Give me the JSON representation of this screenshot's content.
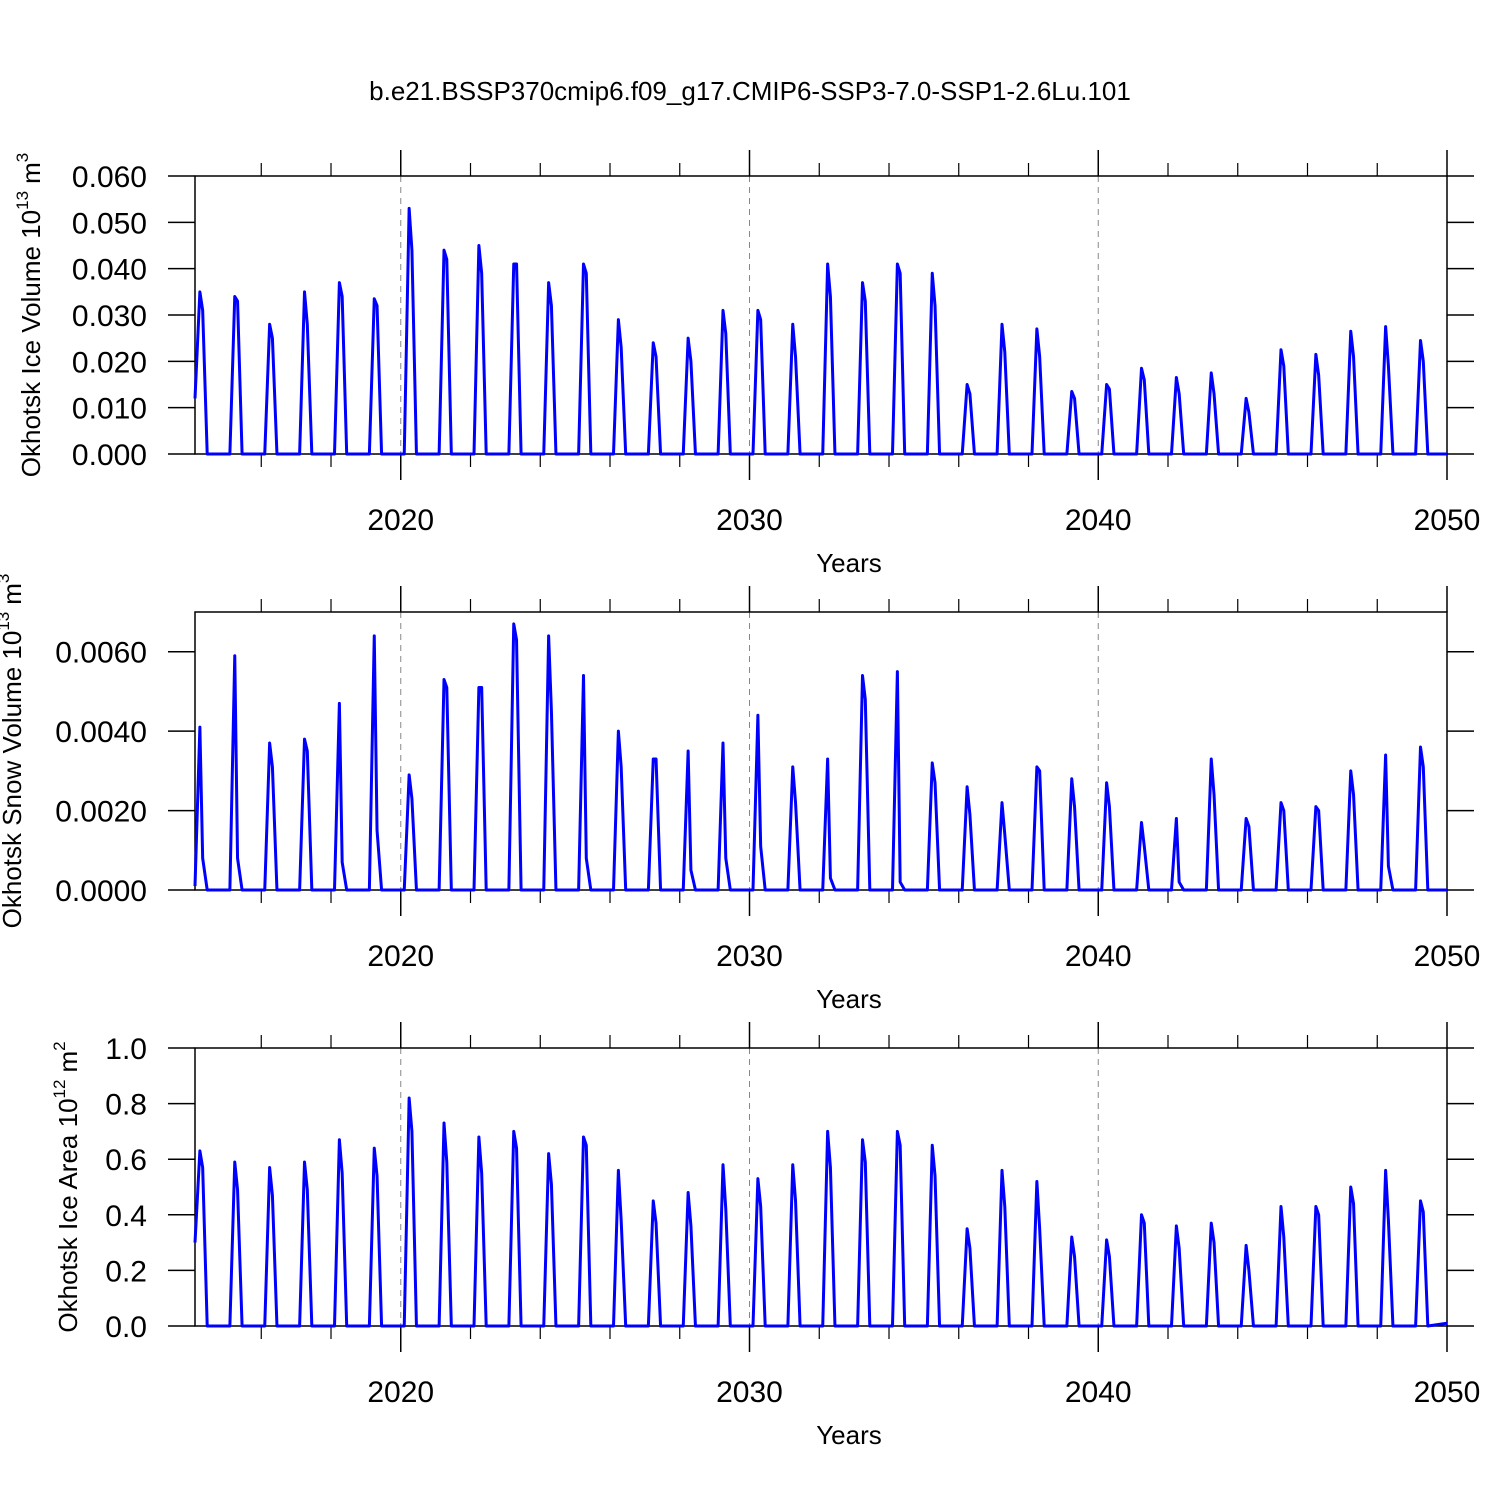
{
  "chart_data": [
    {
      "type": "line",
      "title": "b.e21.BSSP370cmip6.f09_g17.CMIP6-SSP3-7.0-SSP1-2.6Lu.101",
      "ylabel": [
        "Okhotsk Ice Volume 10",
        "13",
        "m",
        "3"
      ],
      "xlabel": "Years",
      "color": "#0000ff",
      "grid": "x",
      "xlim": [
        2014.1,
        2050
      ],
      "xticks": [
        2020,
        2030,
        2040,
        2050
      ],
      "xminor_ticks": [
        2016,
        2018,
        2022,
        2024,
        2026,
        2028,
        2032,
        2034,
        2036,
        2038,
        2042,
        2044,
        2046,
        2048
      ],
      "ylim": [
        0,
        0.06
      ],
      "yticks": [
        {
          "value": 0,
          "label": "0.000"
        },
        {
          "value": 0.01,
          "label": "0.010"
        },
        {
          "value": 0.02,
          "label": "0.020"
        },
        {
          "value": 0.03,
          "label": "0.030"
        },
        {
          "value": 0.04,
          "label": "0.040"
        },
        {
          "value": 0.05,
          "label": "0.050"
        },
        {
          "value": 0.06,
          "label": "0.060"
        }
      ],
      "x": [
        2014.1,
        2014.24,
        2014.32,
        2014.45,
        2015.1,
        2015.24,
        2015.32,
        2015.45,
        2016.1,
        2016.24,
        2016.32,
        2016.45,
        2017.1,
        2017.24,
        2017.32,
        2017.45,
        2018.1,
        2018.24,
        2018.32,
        2018.45,
        2019.1,
        2019.24,
        2019.32,
        2019.45,
        2020.1,
        2020.24,
        2020.32,
        2020.45,
        2021.1,
        2021.24,
        2021.32,
        2021.45,
        2022.1,
        2022.24,
        2022.32,
        2022.45,
        2023.1,
        2023.24,
        2023.32,
        2023.45,
        2024.1,
        2024.24,
        2024.32,
        2024.45,
        2025.1,
        2025.24,
        2025.32,
        2025.45,
        2026.1,
        2026.24,
        2026.32,
        2026.45,
        2027.1,
        2027.24,
        2027.32,
        2027.45,
        2028.1,
        2028.24,
        2028.32,
        2028.45,
        2029.1,
        2029.24,
        2029.32,
        2029.45,
        2030.1,
        2030.24,
        2030.32,
        2030.45,
        2031.1,
        2031.24,
        2031.32,
        2031.45,
        2032.1,
        2032.24,
        2032.32,
        2032.45,
        2033.1,
        2033.24,
        2033.32,
        2033.45,
        2034.1,
        2034.24,
        2034.32,
        2034.45,
        2035.1,
        2035.24,
        2035.32,
        2035.45,
        2036.1,
        2036.24,
        2036.32,
        2036.45,
        2037.1,
        2037.24,
        2037.32,
        2037.45,
        2038.1,
        2038.24,
        2038.32,
        2038.45,
        2039.1,
        2039.24,
        2039.32,
        2039.45,
        2040.1,
        2040.24,
        2040.32,
        2040.45,
        2041.1,
        2041.24,
        2041.32,
        2041.45,
        2042.1,
        2042.24,
        2042.32,
        2042.45,
        2043.1,
        2043.24,
        2043.32,
        2043.45,
        2044.1,
        2044.24,
        2044.32,
        2044.45,
        2045.1,
        2045.24,
        2045.32,
        2045.45,
        2046.1,
        2046.24,
        2046.32,
        2046.45,
        2047.1,
        2047.24,
        2047.32,
        2047.45,
        2048.1,
        2048.24,
        2048.32,
        2048.45,
        2049.1,
        2049.24,
        2049.32,
        2049.45,
        2050
      ],
      "values": [
        0.012,
        0.035,
        0.031,
        0,
        0,
        0.034,
        0.033,
        0,
        0,
        0.028,
        0.025,
        0,
        0,
        0.035,
        0.028,
        0,
        0,
        0.037,
        0.034,
        0,
        0,
        0.0335,
        0.032,
        0,
        0,
        0.053,
        0.044,
        0,
        0,
        0.044,
        0.042,
        0,
        0,
        0.045,
        0.039,
        0,
        0,
        0.041,
        0.041,
        0,
        0,
        0.037,
        0.032,
        0,
        0,
        0.041,
        0.039,
        0,
        0,
        0.029,
        0.023,
        0,
        0,
        0.024,
        0.021,
        0,
        0,
        0.025,
        0.02,
        0,
        0,
        0.031,
        0.026,
        0,
        0,
        0.031,
        0.029,
        0,
        0,
        0.028,
        0.021,
        0,
        0,
        0.041,
        0.034,
        0,
        0,
        0.037,
        0.033,
        0,
        0,
        0.041,
        0.039,
        0,
        0,
        0.039,
        0.032,
        0,
        0,
        0.015,
        0.013,
        0,
        0,
        0.028,
        0.022,
        0,
        0,
        0.027,
        0.021,
        0,
        0,
        0.0135,
        0.012,
        0,
        0,
        0.015,
        0.014,
        0,
        0,
        0.0185,
        0.016,
        0,
        0,
        0.0165,
        0.013,
        0,
        0,
        0.0175,
        0.013,
        0,
        0,
        0.012,
        0.009,
        0,
        0,
        0.0225,
        0.019,
        0,
        0,
        0.0215,
        0.017,
        0,
        0,
        0.0265,
        0.021,
        0,
        0,
        0.0275,
        0.019,
        0,
        0,
        0.0245,
        0.02,
        0,
        0
      ]
    },
    {
      "type": "line",
      "ylabel": [
        "Okhotsk Snow Volume 10",
        "13",
        "m",
        "3"
      ],
      "xlabel": "Years",
      "color": "#0000ff",
      "grid": "x",
      "xlim": [
        2014.1,
        2050
      ],
      "xticks": [
        2020,
        2030,
        2040,
        2050
      ],
      "xminor_ticks": [
        2016,
        2018,
        2022,
        2024,
        2026,
        2028,
        2032,
        2034,
        2036,
        2038,
        2042,
        2044,
        2046,
        2048
      ],
      "ylim": [
        0,
        0.007
      ],
      "yticks": [
        {
          "value": 0,
          "label": "0.0000"
        },
        {
          "value": 0.002,
          "label": "0.0020"
        },
        {
          "value": 0.004,
          "label": "0.0040"
        },
        {
          "value": 0.006,
          "label": "0.0060"
        }
      ],
      "x": [
        2014.1,
        2014.24,
        2014.32,
        2014.45,
        2015.1,
        2015.24,
        2015.32,
        2015.45,
        2016.1,
        2016.24,
        2016.32,
        2016.45,
        2017.1,
        2017.24,
        2017.32,
        2017.45,
        2018.1,
        2018.24,
        2018.32,
        2018.45,
        2019.1,
        2019.24,
        2019.32,
        2019.45,
        2020.1,
        2020.24,
        2020.32,
        2020.45,
        2021.1,
        2021.24,
        2021.32,
        2021.45,
        2022.1,
        2022.24,
        2022.32,
        2022.45,
        2023.1,
        2023.24,
        2023.32,
        2023.45,
        2024.1,
        2024.24,
        2024.32,
        2024.45,
        2025.1,
        2025.24,
        2025.32,
        2025.45,
        2026.1,
        2026.24,
        2026.32,
        2026.45,
        2027.1,
        2027.24,
        2027.32,
        2027.45,
        2028.1,
        2028.24,
        2028.32,
        2028.45,
        2029.1,
        2029.24,
        2029.32,
        2029.45,
        2030.1,
        2030.24,
        2030.32,
        2030.45,
        2031.1,
        2031.24,
        2031.32,
        2031.45,
        2032.1,
        2032.24,
        2032.32,
        2032.45,
        2033.1,
        2033.24,
        2033.32,
        2033.45,
        2034.1,
        2034.24,
        2034.32,
        2034.45,
        2035.1,
        2035.24,
        2035.32,
        2035.45,
        2036.1,
        2036.24,
        2036.32,
        2036.45,
        2037.1,
        2037.24,
        2037.32,
        2037.45,
        2038.1,
        2038.24,
        2038.32,
        2038.45,
        2039.1,
        2039.24,
        2039.32,
        2039.45,
        2040.1,
        2040.24,
        2040.32,
        2040.45,
        2041.1,
        2041.24,
        2041.32,
        2041.45,
        2042.1,
        2042.24,
        2042.32,
        2042.45,
        2043.1,
        2043.24,
        2043.32,
        2043.45,
        2044.1,
        2044.24,
        2044.32,
        2044.45,
        2045.1,
        2045.24,
        2045.32,
        2045.45,
        2046.1,
        2046.24,
        2046.32,
        2046.45,
        2047.1,
        2047.24,
        2047.32,
        2047.45,
        2048.1,
        2048.24,
        2048.32,
        2048.45,
        2049.1,
        2049.24,
        2049.32,
        2049.45,
        2050
      ],
      "values": [
        0.0001,
        0.0041,
        0.0008,
        0,
        0,
        0.0059,
        0.0008,
        0,
        0,
        0.0037,
        0.0031,
        0,
        0,
        0.0038,
        0.0035,
        0,
        0,
        0.0047,
        0.0007,
        0,
        0,
        0.0064,
        0.0015,
        0,
        0,
        0.0029,
        0.0023,
        0,
        0,
        0.0053,
        0.0051,
        0,
        0,
        0.0051,
        0.0051,
        0,
        0,
        0.0067,
        0.0063,
        0,
        0,
        0.0064,
        0.0045,
        0,
        0,
        0.0054,
        0.0008,
        0,
        0,
        0.004,
        0.0031,
        0,
        0,
        0.0033,
        0.0033,
        0,
        0,
        0.0035,
        0.0005,
        0,
        0,
        0.0037,
        0.0008,
        0,
        0,
        0.0044,
        0.0011,
        0,
        0,
        0.0031,
        0.0022,
        0,
        0,
        0.0033,
        0.0003,
        0,
        0,
        0.0054,
        0.0048,
        0,
        0,
        0.0055,
        0.0002,
        0,
        0,
        0.0032,
        0.0027,
        0,
        0,
        0.0026,
        0.0019,
        0,
        0,
        0.0022,
        0.0014,
        0,
        0,
        0.0031,
        0.003,
        0,
        0,
        0.0028,
        0.0021,
        0,
        0,
        0.0027,
        0.0021,
        0,
        0,
        0.0017,
        0.0011,
        0,
        0,
        0.0018,
        0.0002,
        0,
        0,
        0.0033,
        0.0024,
        0,
        0,
        0.0018,
        0.0016,
        0,
        0,
        0.0022,
        0.002,
        0,
        0,
        0.0021,
        0.002,
        0,
        0,
        0.003,
        0.0024,
        0,
        0,
        0.0034,
        0.0006,
        0,
        0,
        0.0036,
        0.0031,
        0,
        0
      ]
    },
    {
      "type": "line",
      "ylabel": [
        "Okhotsk Ice Area 10",
        "12",
        "m",
        "2"
      ],
      "xlabel": "Years",
      "color": "#0000ff",
      "grid": "x",
      "xlim": [
        2014.1,
        2050
      ],
      "xticks": [
        2020,
        2030,
        2040,
        2050
      ],
      "xminor_ticks": [
        2016,
        2018,
        2022,
        2024,
        2026,
        2028,
        2032,
        2034,
        2036,
        2038,
        2042,
        2044,
        2046,
        2048
      ],
      "ylim": [
        0,
        1
      ],
      "yticks": [
        {
          "value": 0,
          "label": "0.0"
        },
        0.2,
        0.4,
        0.6,
        0.8,
        {
          "value": 1,
          "label": "1.0"
        }
      ],
      "x": [
        2014.1,
        2014.24,
        2014.32,
        2014.45,
        2015.1,
        2015.24,
        2015.32,
        2015.45,
        2016.1,
        2016.24,
        2016.32,
        2016.45,
        2017.1,
        2017.24,
        2017.32,
        2017.45,
        2018.1,
        2018.24,
        2018.32,
        2018.45,
        2019.1,
        2019.24,
        2019.32,
        2019.45,
        2020.1,
        2020.24,
        2020.32,
        2020.45,
        2021.1,
        2021.24,
        2021.32,
        2021.45,
        2022.1,
        2022.24,
        2022.32,
        2022.45,
        2023.1,
        2023.24,
        2023.32,
        2023.45,
        2024.1,
        2024.24,
        2024.32,
        2024.45,
        2025.1,
        2025.24,
        2025.32,
        2025.45,
        2026.1,
        2026.24,
        2026.32,
        2026.45,
        2027.1,
        2027.24,
        2027.32,
        2027.45,
        2028.1,
        2028.24,
        2028.32,
        2028.45,
        2029.1,
        2029.24,
        2029.32,
        2029.45,
        2030.1,
        2030.24,
        2030.32,
        2030.45,
        2031.1,
        2031.24,
        2031.32,
        2031.45,
        2032.1,
        2032.24,
        2032.32,
        2032.45,
        2033.1,
        2033.24,
        2033.32,
        2033.45,
        2034.1,
        2034.24,
        2034.32,
        2034.45,
        2035.1,
        2035.24,
        2035.32,
        2035.45,
        2036.1,
        2036.24,
        2036.32,
        2036.45,
        2037.1,
        2037.24,
        2037.32,
        2037.45,
        2038.1,
        2038.24,
        2038.32,
        2038.45,
        2039.1,
        2039.24,
        2039.32,
        2039.45,
        2040.1,
        2040.24,
        2040.32,
        2040.45,
        2041.1,
        2041.24,
        2041.32,
        2041.45,
        2042.1,
        2042.24,
        2042.32,
        2042.45,
        2043.1,
        2043.24,
        2043.32,
        2043.45,
        2044.1,
        2044.24,
        2044.32,
        2044.45,
        2045.1,
        2045.24,
        2045.32,
        2045.45,
        2046.1,
        2046.24,
        2046.32,
        2046.45,
        2047.1,
        2047.24,
        2047.32,
        2047.45,
        2048.1,
        2048.24,
        2048.32,
        2048.45,
        2049.1,
        2049.24,
        2049.32,
        2049.45,
        2050
      ],
      "values": [
        0.3,
        0.63,
        0.57,
        0,
        0,
        0.59,
        0.49,
        0,
        0,
        0.57,
        0.47,
        0,
        0,
        0.59,
        0.49,
        0,
        0,
        0.67,
        0.55,
        0,
        0,
        0.64,
        0.54,
        0,
        0,
        0.82,
        0.7,
        0,
        0,
        0.73,
        0.59,
        0,
        0,
        0.68,
        0.55,
        0,
        0,
        0.7,
        0.64,
        0,
        0,
        0.62,
        0.51,
        0,
        0,
        0.68,
        0.65,
        0,
        0,
        0.56,
        0.38,
        0,
        0,
        0.45,
        0.37,
        0,
        0,
        0.48,
        0.36,
        0,
        0,
        0.58,
        0.42,
        0,
        0,
        0.53,
        0.43,
        0,
        0,
        0.58,
        0.45,
        0,
        0,
        0.7,
        0.57,
        0,
        0,
        0.67,
        0.59,
        0,
        0,
        0.7,
        0.65,
        0,
        0,
        0.65,
        0.54,
        0,
        0,
        0.35,
        0.28,
        0,
        0,
        0.56,
        0.43,
        0,
        0,
        0.52,
        0.35,
        0,
        0,
        0.32,
        0.25,
        0,
        0,
        0.31,
        0.25,
        0,
        0,
        0.4,
        0.37,
        0,
        0,
        0.36,
        0.28,
        0,
        0,
        0.37,
        0.3,
        0,
        0,
        0.29,
        0.2,
        0,
        0,
        0.43,
        0.32,
        0,
        0,
        0.43,
        0.4,
        0,
        0,
        0.5,
        0.44,
        0,
        0,
        0.56,
        0.38,
        0,
        0,
        0.45,
        0.41,
        0,
        0.01
      ]
    }
  ]
}
